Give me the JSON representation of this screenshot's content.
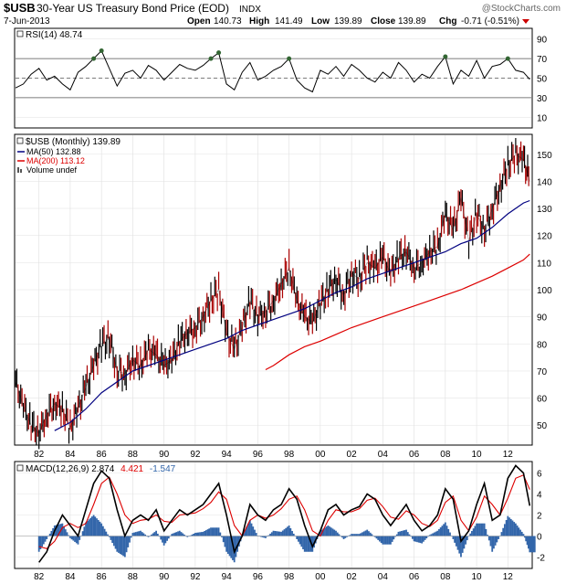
{
  "header": {
    "symbol": "$USB",
    "name": "30-Year US Treasury Bond Price (EOD)",
    "exchange": "INDX",
    "date": "7-Jun-2013",
    "watermark": "@StockCharts.com",
    "open_label": "Open",
    "open": "140.73",
    "high_label": "High",
    "high": "141.49",
    "low_label": "Low",
    "low": "139.89",
    "close_label": "Close",
    "close": "139.89",
    "chg_label": "Chg",
    "chg": "-0.71 (-0.51%)"
  },
  "colors": {
    "ma50": "#000080",
    "ma200": "#dd0000",
    "macd_signal": "#dd0000",
    "macd_hist": "#3366aa",
    "macd_line": "#000000",
    "rsi_hot": "#336633",
    "down_bar": "#aa0000",
    "chg": "#cc0000"
  },
  "chart_data": [
    {
      "type": "line",
      "title": "RSI(14)",
      "legend": "RSI(14) 48.74",
      "last_value": 48.74,
      "ylim": [
        0,
        100
      ],
      "yticks": [
        90,
        70,
        50,
        30,
        10
      ],
      "reference_lines": [
        70,
        50,
        30
      ],
      "x_range": [
        1980.5,
        2013.5
      ],
      "series": [
        {
          "name": "RSI(14)",
          "x": [
            1980.5,
            1981.0,
            1981.5,
            1982.0,
            1982.5,
            1983.0,
            1983.5,
            1984.0,
            1984.5,
            1985.0,
            1985.5,
            1986.0,
            1986.5,
            1987.0,
            1987.5,
            1988.0,
            1988.5,
            1989.0,
            1989.5,
            1990.0,
            1990.5,
            1991.0,
            1991.5,
            1992.0,
            1992.5,
            1993.0,
            1993.5,
            1994.0,
            1994.5,
            1995.0,
            1995.5,
            1996.0,
            1996.5,
            1997.0,
            1997.5,
            1998.0,
            1998.5,
            1999.0,
            1999.5,
            2000.0,
            2000.5,
            2001.0,
            2001.5,
            2002.0,
            2002.5,
            2003.0,
            2003.5,
            2004.0,
            2004.5,
            2005.0,
            2005.5,
            2006.0,
            2006.5,
            2007.0,
            2007.5,
            2008.0,
            2008.5,
            2009.0,
            2009.5,
            2010.0,
            2010.5,
            2011.0,
            2011.5,
            2012.0,
            2012.5,
            2013.0,
            2013.4
          ],
          "values": [
            40,
            44,
            54,
            60,
            48,
            52,
            44,
            38,
            56,
            62,
            70,
            78,
            60,
            42,
            55,
            58,
            50,
            63,
            58,
            48,
            56,
            64,
            60,
            58,
            63,
            70,
            76,
            44,
            38,
            56,
            66,
            48,
            52,
            58,
            62,
            70,
            48,
            40,
            36,
            58,
            54,
            62,
            52,
            64,
            58,
            50,
            46,
            56,
            50,
            66,
            58,
            46,
            54,
            50,
            62,
            72,
            44,
            58,
            52,
            68,
            50,
            62,
            64,
            70,
            58,
            56,
            48.74
          ]
        }
      ]
    },
    {
      "type": "line",
      "title": "$USB (Monthly) 139.89",
      "last_value": 139.89,
      "ylim": [
        43,
        157
      ],
      "yticks": [
        150,
        140,
        130,
        120,
        110,
        100,
        90,
        80,
        70,
        60,
        50
      ],
      "x_range": [
        1980.5,
        2013.5
      ],
      "xticks": [
        "82",
        "84",
        "86",
        "88",
        "90",
        "92",
        "94",
        "96",
        "98",
        "00",
        "02",
        "04",
        "06",
        "08",
        "10",
        "12"
      ],
      "legend": [
        "$USB (Monthly) 139.89",
        "MA(50) 132.88",
        "MA(200) 113.12",
        "Volume undef"
      ],
      "series": [
        {
          "name": "$USB (Monthly)",
          "x": [
            1980.5,
            1981.0,
            1981.5,
            1982.0,
            1982.5,
            1983.0,
            1983.5,
            1984.0,
            1984.5,
            1985.0,
            1985.5,
            1986.0,
            1986.5,
            1987.0,
            1987.5,
            1988.0,
            1988.5,
            1989.0,
            1989.5,
            1990.0,
            1990.5,
            1991.0,
            1991.5,
            1992.0,
            1992.5,
            1993.0,
            1993.5,
            1994.0,
            1994.5,
            1995.0,
            1995.5,
            1996.0,
            1996.5,
            1997.0,
            1997.5,
            1998.0,
            1998.5,
            1999.0,
            1999.5,
            2000.0,
            2000.5,
            2001.0,
            2001.5,
            2002.0,
            2002.5,
            2003.0,
            2003.5,
            2004.0,
            2004.5,
            2005.0,
            2005.5,
            2006.0,
            2006.5,
            2007.0,
            2007.5,
            2008.0,
            2008.5,
            2009.0,
            2009.5,
            2010.0,
            2010.5,
            2011.0,
            2011.5,
            2012.0,
            2012.5,
            2013.0,
            2013.4
          ],
          "values": [
            66,
            57,
            50,
            47,
            54,
            58,
            56,
            49,
            56,
            64,
            72,
            80,
            82,
            70,
            69,
            74,
            72,
            78,
            76,
            72,
            74,
            81,
            84,
            86,
            90,
            96,
            100,
            84,
            78,
            86,
            96,
            90,
            92,
            96,
            102,
            108,
            96,
            90,
            88,
            95,
            100,
            104,
            98,
            106,
            104,
            110,
            108,
            112,
            106,
            112,
            114,
            108,
            110,
            114,
            116,
            128,
            122,
            134,
            118,
            128,
            122,
            130,
            138,
            146,
            150,
            148,
            140
          ]
        },
        {
          "name": "MA(50)",
          "x": [
            1983.0,
            1984.0,
            1985.0,
            1986.0,
            1987.0,
            1988.0,
            1989.0,
            1990.0,
            1991.0,
            1992.0,
            1993.0,
            1994.0,
            1995.0,
            1996.0,
            1997.0,
            1998.0,
            1999.0,
            2000.0,
            2001.0,
            2002.0,
            2003.0,
            2004.0,
            2005.0,
            2006.0,
            2007.0,
            2008.0,
            2009.0,
            2010.0,
            2011.0,
            2012.0,
            2013.0,
            2013.4
          ],
          "values": [
            48,
            51,
            56,
            62,
            66,
            70,
            72,
            74,
            76,
            78,
            80,
            82,
            85,
            87,
            89,
            91,
            93,
            96,
            99,
            101,
            104,
            106,
            108,
            110,
            112,
            114,
            117,
            119,
            123,
            128,
            132,
            132.88
          ]
        },
        {
          "name": "MA(200)",
          "x": [
            1996.5,
            1997.0,
            1998.0,
            1999.0,
            2000.0,
            2001.0,
            2002.0,
            2003.0,
            2004.0,
            2005.0,
            2006.0,
            2007.0,
            2008.0,
            2009.0,
            2010.0,
            2011.0,
            2012.0,
            2013.0,
            2013.4
          ],
          "values": [
            70.5,
            72,
            76,
            79,
            81,
            83.5,
            86,
            88,
            90,
            92,
            94,
            96,
            98,
            100,
            102.5,
            105,
            108,
            111,
            113.12
          ]
        }
      ]
    },
    {
      "type": "line",
      "title": "MACD(12,26,9)",
      "legend": [
        "MACD(12,26,9) 2.874",
        "4.421",
        "-1.547"
      ],
      "ylim": [
        -3,
        7
      ],
      "yticks": [
        6,
        4,
        2,
        0,
        -2
      ],
      "x_range": [
        1980.5,
        2013.5
      ],
      "xticks": [
        "82",
        "84",
        "86",
        "88",
        "90",
        "92",
        "94",
        "96",
        "98",
        "00",
        "02",
        "04",
        "06",
        "08",
        "10",
        "12"
      ],
      "series": [
        {
          "name": "MACD",
          "x": [
            1982.0,
            1982.5,
            1983.0,
            1983.5,
            1984.0,
            1984.5,
            1985.0,
            1985.5,
            1986.0,
            1986.5,
            1987.0,
            1987.5,
            1988.0,
            1988.5,
            1989.0,
            1989.5,
            1990.0,
            1990.5,
            1991.0,
            1991.5,
            1992.0,
            1992.5,
            1993.0,
            1993.5,
            1994.0,
            1994.5,
            1995.0,
            1995.5,
            1996.0,
            1996.5,
            1997.0,
            1997.5,
            1998.0,
            1998.5,
            1999.0,
            1999.5,
            2000.0,
            2000.5,
            2001.0,
            2001.5,
            2002.0,
            2002.5,
            2003.0,
            2003.5,
            2004.0,
            2004.5,
            2005.0,
            2005.5,
            2006.0,
            2006.5,
            2007.0,
            2007.5,
            2008.0,
            2008.5,
            2009.0,
            2009.5,
            2010.0,
            2010.5,
            2011.0,
            2011.5,
            2012.0,
            2012.5,
            2013.0,
            2013.4
          ],
          "values": [
            -2.5,
            -1.5,
            0.5,
            2,
            1,
            0,
            2.5,
            5,
            6.2,
            5.5,
            2.5,
            0,
            1.5,
            2,
            1.5,
            2.5,
            0.5,
            1.5,
            2.5,
            2,
            2.5,
            3,
            4,
            5,
            2,
            -1.5,
            0,
            3,
            2,
            1.5,
            2.5,
            3,
            4.5,
            3.5,
            1,
            -1,
            0.5,
            2.5,
            3,
            2,
            2.5,
            2.8,
            4,
            3.5,
            2,
            1,
            2,
            3,
            1.5,
            0.5,
            1,
            2,
            4.5,
            3.5,
            -0.5,
            0.5,
            3,
            5,
            1.5,
            2,
            5.5,
            6.7,
            6,
            2.874
          ]
        },
        {
          "name": "Signal",
          "x": [
            1982.0,
            1982.5,
            1983.0,
            1983.5,
            1984.0,
            1984.5,
            1985.0,
            1985.5,
            1986.0,
            1986.5,
            1987.0,
            1987.5,
            1988.0,
            1988.5,
            1989.0,
            1989.5,
            1990.0,
            1990.5,
            1991.0,
            1991.5,
            1992.0,
            1992.5,
            1993.0,
            1993.5,
            1994.0,
            1994.5,
            1995.0,
            1995.5,
            1996.0,
            1996.5,
            1997.0,
            1997.5,
            1998.0,
            1998.5,
            1999.0,
            1999.5,
            2000.0,
            2000.5,
            2001.0,
            2001.5,
            2002.0,
            2002.5,
            2003.0,
            2003.5,
            2004.0,
            2004.5,
            2005.0,
            2005.5,
            2006.0,
            2006.5,
            2007.0,
            2007.5,
            2008.0,
            2008.5,
            2009.0,
            2009.5,
            2010.0,
            2010.5,
            2011.0,
            2011.5,
            2012.0,
            2012.5,
            2013.0,
            2013.4
          ],
          "values": [
            -1,
            -1.2,
            -0.5,
            0.8,
            1.2,
            0.8,
            1.2,
            3,
            5,
            5.6,
            4,
            2,
            1.2,
            1.5,
            1.6,
            2,
            1.4,
            1.3,
            2,
            2.1,
            2.2,
            2.6,
            3.2,
            4.2,
            3.5,
            1,
            0,
            1.5,
            2,
            1.7,
            2,
            2.6,
            3.5,
            3.8,
            2.5,
            0.5,
            0,
            1.5,
            2.5,
            2.3,
            2.3,
            2.6,
            3.4,
            3.6,
            2.8,
            1.8,
            1.6,
            2.4,
            2,
            1.2,
            0.9,
            1.5,
            3.2,
            3.8,
            1.5,
            0.5,
            1.8,
            3.8,
            3,
            2,
            3.6,
            5.5,
            5.8,
            4.421
          ]
        },
        {
          "name": "Histogram",
          "x": [
            1982.0,
            1982.5,
            1983.0,
            1983.5,
            1984.0,
            1984.5,
            1985.0,
            1985.5,
            1986.0,
            1986.5,
            1987.0,
            1987.5,
            1988.0,
            1988.5,
            1989.0,
            1989.5,
            1990.0,
            1990.5,
            1991.0,
            1991.5,
            1992.0,
            1992.5,
            1993.0,
            1993.5,
            1994.0,
            1994.5,
            1995.0,
            1995.5,
            1996.0,
            1996.5,
            1997.0,
            1997.5,
            1998.0,
            1998.5,
            1999.0,
            1999.5,
            2000.0,
            2000.5,
            2001.0,
            2001.5,
            2002.0,
            2002.5,
            2003.0,
            2003.5,
            2004.0,
            2004.5,
            2005.0,
            2005.5,
            2006.0,
            2006.5,
            2007.0,
            2007.5,
            2008.0,
            2008.5,
            2009.0,
            2009.5,
            2010.0,
            2010.5,
            2011.0,
            2011.5,
            2012.0,
            2012.5,
            2013.0,
            2013.4
          ],
          "values": [
            -1.5,
            -0.3,
            1,
            1.2,
            -0.2,
            -0.8,
            1.3,
            2,
            1.2,
            -0.1,
            -1.5,
            -2,
            0.3,
            0.5,
            -0.1,
            0.5,
            -0.9,
            0.2,
            0.5,
            -0.1,
            0.3,
            0.4,
            0.8,
            0.8,
            -1.5,
            -2.5,
            0,
            1.5,
            0,
            -0.2,
            0.5,
            0.4,
            1,
            -0.3,
            -1.5,
            -1.5,
            0.5,
            1,
            0.5,
            -0.3,
            0.2,
            0.2,
            0.6,
            -0.1,
            -0.8,
            -0.8,
            0.4,
            0.6,
            -0.5,
            -0.7,
            0.1,
            0.5,
            1.3,
            -0.3,
            -2,
            0,
            1.2,
            1.2,
            -1.5,
            0,
            1.9,
            1.2,
            0.2,
            -1.547
          ]
        }
      ]
    }
  ]
}
